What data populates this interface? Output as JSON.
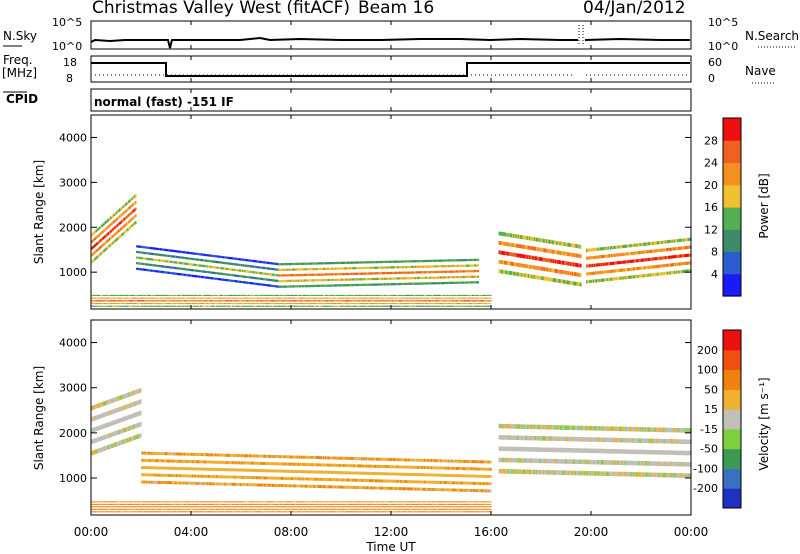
{
  "header": {
    "station": "Christmas Valley West (fitACF)",
    "beam": "Beam 16",
    "date": "04/Jan/2012"
  },
  "nsky_panel": {
    "left_label": "N.Sky",
    "right_label": "N.Search",
    "left_ticks": [
      "10^5",
      "10^0"
    ],
    "right_ticks": [
      "10^5",
      "10^0"
    ]
  },
  "freq_panel": {
    "left_label_1": "Freq.",
    "left_label_2": "[MHz]",
    "right_label": "Nave",
    "left_ticks": [
      "18",
      "8"
    ],
    "right_ticks": [
      "60",
      "0"
    ]
  },
  "cpid_panel": {
    "label": "CPID",
    "text": "normal (fast) -151 IF"
  },
  "x_axis": {
    "label": "Time UT",
    "ticks": [
      "00:00",
      "04:00",
      "08:00",
      "12:00",
      "16:00",
      "20:00",
      "00:00"
    ]
  },
  "range_axis": {
    "label": "Slant Range [km]",
    "ticks": [
      "1000",
      "2000",
      "3000",
      "4000"
    ]
  },
  "power_bar": {
    "label": "Power [dB]",
    "ticks": [
      "4",
      "8",
      "12",
      "16",
      "20",
      "24",
      "28"
    ],
    "colors": [
      "#1a1aff",
      "#2a5ccf",
      "#3f8a6a",
      "#52b052",
      "#f0c030",
      "#f39020",
      "#f06020",
      "#ee1010"
    ]
  },
  "velocity_bar": {
    "label": "Velocity [m s⁻¹]",
    "ticks": [
      "200",
      "100",
      "50",
      "15",
      "-15",
      "-50",
      "-100",
      "-200"
    ],
    "colors": [
      "#2030c0",
      "#3a70c0",
      "#3a9a50",
      "#7fd040",
      "#c0c0b8",
      "#f0b030",
      "#f08010",
      "#f05010",
      "#ee1010"
    ]
  },
  "chart_data": {
    "type": "heatmap",
    "x_range_hours": [
      0,
      24
    ],
    "y_range_km": [
      180,
      4500
    ],
    "panels": [
      {
        "name": "Power",
        "units": "dB",
        "range": [
          0,
          32
        ],
        "bands": [
          {
            "from_h": 0.0,
            "to_h": 1.8,
            "center_km": [
              1500,
              2400
            ],
            "halfwidth_km": 300,
            "level": 28
          },
          {
            "from_h": 1.8,
            "to_h": 7.5,
            "center_km": [
              1300,
              900
            ],
            "halfwidth_km": 250,
            "level": 16
          },
          {
            "from_h": 7.5,
            "to_h": 15.5,
            "center_km": [
              900,
              1000
            ],
            "halfwidth_km": 250,
            "level": 24
          },
          {
            "from_h": 16.3,
            "to_h": 19.6,
            "center_km": [
              1400,
              1100
            ],
            "halfwidth_km": 420,
            "level": 28
          },
          {
            "from_h": 19.8,
            "to_h": 24.0,
            "center_km": [
              1100,
              1350
            ],
            "halfwidth_km": 350,
            "level": 28
          },
          {
            "from_h": 0.0,
            "to_h": 16.0,
            "center_km": [
              350,
              350
            ],
            "halfwidth_km": 120,
            "level": 26
          }
        ]
      },
      {
        "name": "Velocity",
        "units": "m s^-1",
        "range": [
          -200,
          200
        ],
        "bands": [
          {
            "from_h": 0.0,
            "to_h": 2.0,
            "center_km": [
              2000,
              2400
            ],
            "halfwidth_km": 500,
            "level": 0
          },
          {
            "from_h": 2.0,
            "to_h": 16.0,
            "center_km": [
              1200,
              1000
            ],
            "halfwidth_km": 320,
            "level": -40
          },
          {
            "from_h": 16.3,
            "to_h": 24.0,
            "center_km": [
              1600,
              1500
            ],
            "halfwidth_km": 500,
            "level": 0
          },
          {
            "from_h": 0.0,
            "to_h": 16.0,
            "center_km": [
              350,
              350
            ],
            "halfwidth_km": 110,
            "level": -60
          }
        ]
      }
    ]
  }
}
